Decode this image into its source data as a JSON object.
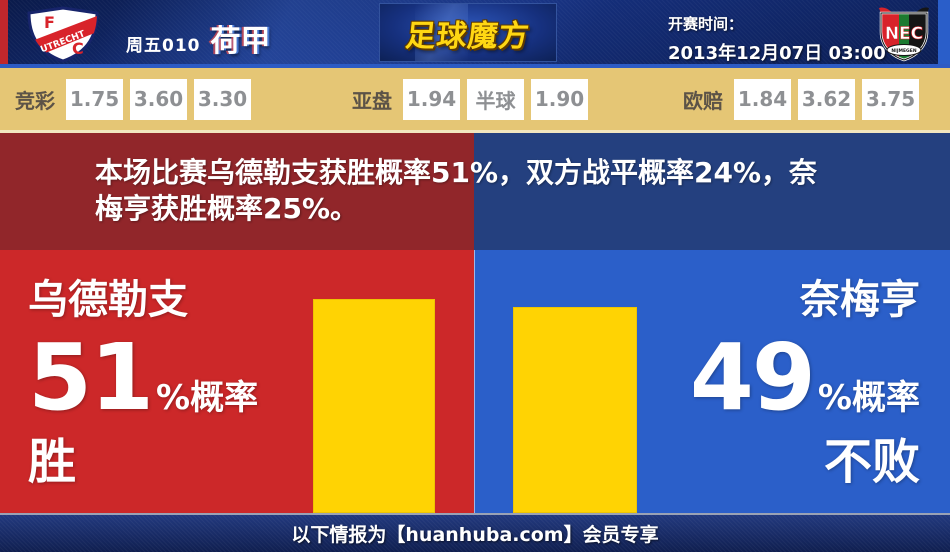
{
  "header": {
    "match_code": "周五010",
    "league": "荷甲",
    "brand": "足球魔方",
    "kickoff_label": "开赛时间：",
    "kickoff_time": "2013年12月07日 03:00",
    "home_logo": {
      "initial_top": "F",
      "initial_bottom": "C",
      "club": "UTRECHT"
    },
    "away_logo": {
      "abbr": "NEC",
      "banner": "NIJMEGEN"
    }
  },
  "odds_bar": {
    "groups": [
      {
        "label": "竞彩",
        "values": [
          "1.75",
          "3.60",
          "3.30"
        ]
      },
      {
        "label": "亚盘",
        "values": [
          "1.94",
          "半球",
          "1.90"
        ]
      },
      {
        "label": "欧赔",
        "values": [
          "1.84",
          "3.62",
          "3.75"
        ]
      }
    ]
  },
  "summary": {
    "line1": "本场比赛乌德勒支获胜概率51%，双方战平概率24%，奈",
    "line2": "梅亨获胜概率25%。"
  },
  "home_panel": {
    "team": "乌德勒支",
    "percent": "51",
    "percent_suffix": "%概率",
    "outcome": "胜"
  },
  "away_panel": {
    "team": "奈梅亨",
    "percent": "49",
    "percent_suffix": "%概率",
    "outcome": "不败"
  },
  "footer": {
    "text": "以下情报为【huanhuba.com】会员专享"
  },
  "colors": {
    "red_bright": "#cc2829",
    "red_dark": "#91262a",
    "blue_bright": "#2b5fc9",
    "blue_dark": "#24407f",
    "bar_yellow": "#ffd303",
    "odds_bg": "#e5c675",
    "brand_gold": "#ffd713",
    "header_navy": "#16307e"
  },
  "chart_data": {
    "type": "bar",
    "title": "本场比赛乌德勒支获胜概率51%，双方战平概率24%，奈梅亨获胜概率25%。",
    "categories": [
      "乌德勒支 胜",
      "奈梅亨 不败"
    ],
    "values": [
      51,
      49
    ],
    "unit": "%",
    "bar_color": "#ffd303",
    "legend_position": "none",
    "grid": false,
    "probabilities": {
      "home_win_pct": 51,
      "draw_pct": 24,
      "away_win_pct": 25
    }
  }
}
